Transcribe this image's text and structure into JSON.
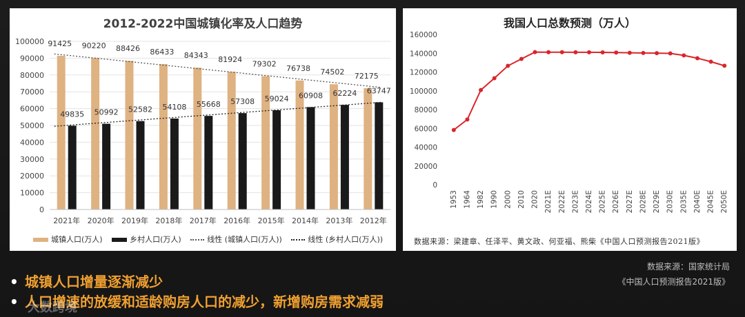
{
  "charts": {
    "left": {
      "title": "2012-2022中国城镇化率及人口趋势",
      "legend": {
        "urban": "城镇人口(万人)",
        "rural": "乡村人口(万人)",
        "urban_trend": "线性 (城镇人口(万人))",
        "rural_trend": "线性 (乡村人口(万人))"
      }
    },
    "right": {
      "title": "我国人口总数预测（万人）",
      "source": "数据来源：梁建章、任泽平、黄文政、何亚福、熊柴《中国人口预测报告2021版》"
    }
  },
  "chart_data": [
    {
      "type": "bar",
      "title": "2012-2022中国城镇化率及人口趋势",
      "categories": [
        "2021年",
        "2020年",
        "2019年",
        "2018年",
        "2017年",
        "2016年",
        "2015年",
        "2014年",
        "2013年",
        "2012年"
      ],
      "series": [
        {
          "name": "城镇人口(万人)",
          "values": [
            91425,
            90220,
            88426,
            86433,
            84343,
            81924,
            79302,
            76738,
            74502,
            72175
          ]
        },
        {
          "name": "乡村人口(万人)",
          "values": [
            49835,
            50992,
            52582,
            54108,
            55668,
            57308,
            59024,
            60908,
            62224,
            63747
          ]
        }
      ],
      "trendlines": [
        "线性 (城镇人口(万人))",
        "线性 (乡村人口(万人))"
      ],
      "ylim": [
        0,
        100000
      ],
      "yticks": [
        0,
        10000,
        20000,
        30000,
        40000,
        50000,
        60000,
        70000,
        80000,
        90000,
        100000
      ],
      "colors": {
        "urban": "#dfb282",
        "rural": "#1a1a1a"
      }
    },
    {
      "type": "line",
      "title": "我国人口总数预测（万人）",
      "x": [
        "1953",
        "1964",
        "1982",
        "1990",
        "2000",
        "2010",
        "2020",
        "2021E",
        "2022E",
        "2023E",
        "2024E",
        "2025E",
        "2026E",
        "2027E",
        "2028E",
        "2029E",
        "2030E",
        "2035E",
        "2040E",
        "2045E",
        "2050E"
      ],
      "values": [
        58260,
        69458,
        100818,
        113368,
        126583,
        133972,
        141178,
        141130,
        141100,
        141050,
        141000,
        140900,
        140700,
        140500,
        140300,
        140100,
        139800,
        137700,
        134700,
        131000,
        126700
      ],
      "ylim": [
        0,
        160000
      ],
      "yticks": [
        0,
        20000,
        40000,
        60000,
        80000,
        100000,
        120000,
        140000,
        160000
      ],
      "color": "#d9252b"
    }
  ],
  "footer": {
    "source_line1": "数据来源：国家统计局",
    "source_line2": "《中国人口预测报告2021版》",
    "bullets": [
      {
        "mark": "•",
        "text": "城镇人口增量逐渐减少"
      },
      {
        "mark": "•",
        "text": "人口增速的放缓和适龄购房人口的减少，新增购房需求减弱"
      }
    ],
    "watermark": "大数跨境"
  }
}
